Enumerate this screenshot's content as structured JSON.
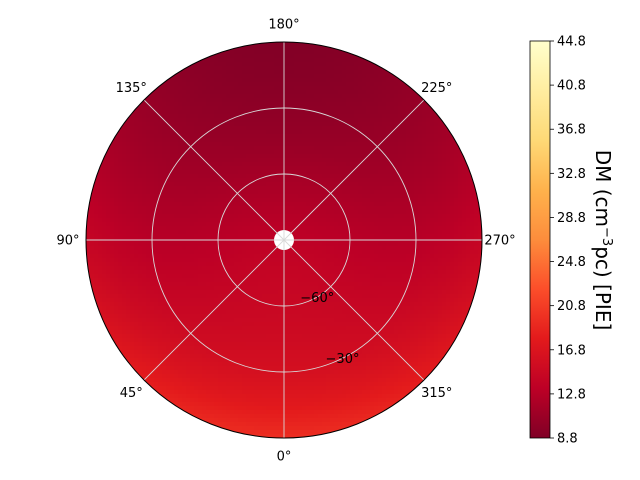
{
  "chart_data": {
    "type": "heatmap",
    "projection": "polar",
    "grid": true,
    "angular_tick_labels": [
      "0°",
      "45°",
      "90°",
      "135°",
      "180°",
      "225°",
      "270°",
      "315°"
    ],
    "radial_tick_labels": [
      "−30°",
      "−60°"
    ],
    "radial_ticks": [
      -30,
      -60
    ],
    "radial_range": [
      -90,
      0
    ],
    "field": {
      "description_axis": "latitude",
      "latitude": [
        -90,
        -75,
        -60,
        -45,
        -30,
        -15,
        0
      ],
      "value_at_angle_0": [
        13.5,
        14.2,
        14.6,
        15.2,
        16.0,
        17.5,
        19.5
      ],
      "value_at_angle_180": [
        13.5,
        12.5,
        11.5,
        10.5,
        9.8,
        9.3,
        9.0
      ]
    },
    "colorbar": {
      "label": "DM (cm$^{-3}$pc) [PIE]",
      "label_parts": {
        "prefix": "DM (cm",
        "sup": "−3",
        "suffix": "pc) [PIE]"
      },
      "ticks": [
        8.8,
        12.8,
        16.8,
        20.8,
        24.8,
        28.8,
        32.8,
        36.8,
        40.8,
        44.8
      ],
      "tick_labels": [
        "8.8",
        "12.8",
        "16.8",
        "20.8",
        "24.8",
        "28.8",
        "32.8",
        "36.8",
        "40.8",
        "44.8"
      ],
      "range": [
        8.8,
        44.8
      ],
      "colormap": "YlOrRd_r",
      "colormap_stops": [
        "#800026",
        "#bd0026",
        "#e31a1c",
        "#fc4e2a",
        "#fd8d3c",
        "#feb24c",
        "#fed976",
        "#ffeda0",
        "#ffffcc"
      ]
    }
  }
}
